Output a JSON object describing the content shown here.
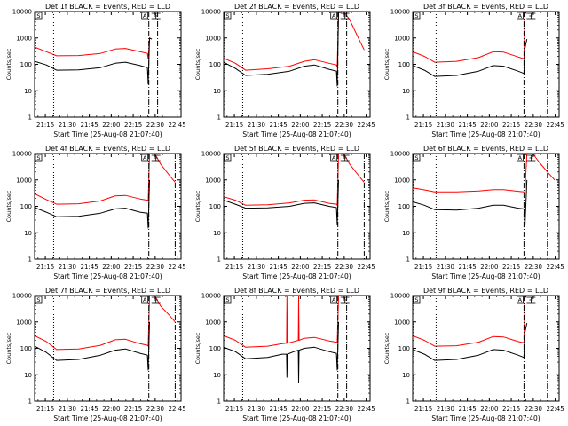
{
  "figure": {
    "xlabel": "Start Time (25-Aug-08 21:07:40)",
    "ylabel": "Counts/sec",
    "x_ticks": [
      "21:15",
      "21:30",
      "21:45",
      "22:00",
      "22:15",
      "22:30",
      "22:45"
    ],
    "y_ticks": [
      "1",
      "10",
      "100",
      "1000",
      "10000"
    ],
    "x_range_minutes": [
      0,
      100
    ],
    "y_range_log10": [
      0,
      4
    ],
    "y_scale": "log",
    "colors": {
      "events": "#000000",
      "lld": "#ff0000",
      "axes": "#000000"
    },
    "marker_labels": [
      "S",
      "A"
    ]
  },
  "chart_data": [
    {
      "type": "line",
      "title": "Det 1f BLACK = Events, RED = LLD",
      "black": [
        [
          0,
          130
        ],
        [
          8,
          95
        ],
        [
          15,
          60
        ],
        [
          30,
          62
        ],
        [
          45,
          75
        ],
        [
          55,
          110
        ],
        [
          62,
          120
        ],
        [
          72,
          90
        ],
        [
          77,
          75
        ],
        [
          77.6,
          18
        ],
        [
          78.5,
          1000
        ],
        [
          80,
          900
        ]
      ],
      "red": [
        [
          0,
          450
        ],
        [
          8,
          300
        ],
        [
          15,
          210
        ],
        [
          30,
          215
        ],
        [
          45,
          260
        ],
        [
          55,
          380
        ],
        [
          62,
          400
        ],
        [
          72,
          300
        ],
        [
          77,
          260
        ],
        [
          77.6,
          160
        ],
        [
          78.5,
          1000
        ],
        [
          80,
          900
        ]
      ],
      "vlines": [
        {
          "x": 13,
          "style": "dotted"
        },
        {
          "x": 78,
          "style": "dashdot"
        },
        {
          "x": 84,
          "style": "dashdot"
        }
      ]
    },
    {
      "type": "line",
      "title": "Det 2f BLACK = Events, RED = LLD",
      "black": [
        [
          0,
          120
        ],
        [
          8,
          70
        ],
        [
          15,
          38
        ],
        [
          30,
          42
        ],
        [
          45,
          55
        ],
        [
          55,
          85
        ],
        [
          62,
          95
        ],
        [
          72,
          65
        ],
        [
          77,
          55
        ],
        [
          77.6,
          15
        ],
        [
          78.5,
          9000
        ],
        [
          82,
          10000
        ]
      ],
      "red": [
        [
          0,
          170
        ],
        [
          8,
          110
        ],
        [
          15,
          60
        ],
        [
          30,
          68
        ],
        [
          45,
          85
        ],
        [
          55,
          130
        ],
        [
          62,
          150
        ],
        [
          72,
          110
        ],
        [
          77,
          95
        ],
        [
          77.6,
          80
        ],
        [
          78.5,
          9000
        ],
        [
          82,
          10000
        ],
        [
          86,
          5000
        ],
        [
          92,
          1000
        ],
        [
          96,
          350
        ]
      ],
      "vlines": [
        {
          "x": 13,
          "style": "dotted"
        },
        {
          "x": 78,
          "style": "dashdot"
        },
        {
          "x": 84,
          "style": "dashdot"
        }
      ]
    },
    {
      "type": "line",
      "title": "Det 3f BLACK = Events, RED = LLD",
      "black": [
        [
          0,
          90
        ],
        [
          8,
          60
        ],
        [
          15,
          35
        ],
        [
          30,
          38
        ],
        [
          45,
          55
        ],
        [
          55,
          90
        ],
        [
          62,
          85
        ],
        [
          72,
          55
        ],
        [
          76,
          45
        ],
        [
          76.6,
          400
        ],
        [
          78,
          900
        ]
      ],
      "red": [
        [
          0,
          300
        ],
        [
          8,
          200
        ],
        [
          15,
          120
        ],
        [
          30,
          130
        ],
        [
          45,
          180
        ],
        [
          55,
          300
        ],
        [
          62,
          290
        ],
        [
          72,
          190
        ],
        [
          76,
          160
        ],
        [
          76.6,
          8000
        ],
        [
          78,
          10000
        ]
      ],
      "vlines": [
        {
          "x": 16,
          "style": "dotted"
        },
        {
          "x": 76,
          "style": "dashdot"
        },
        {
          "x": 92,
          "style": "dashdot"
        }
      ]
    },
    {
      "type": "line",
      "title": "Det 4f BLACK = Events, RED = LLD",
      "black": [
        [
          0,
          90
        ],
        [
          8,
          60
        ],
        [
          15,
          40
        ],
        [
          30,
          42
        ],
        [
          45,
          55
        ],
        [
          55,
          80
        ],
        [
          62,
          85
        ],
        [
          72,
          60
        ],
        [
          77,
          55
        ],
        [
          77.6,
          15
        ],
        [
          78.5,
          1000
        ]
      ],
      "red": [
        [
          0,
          300
        ],
        [
          8,
          180
        ],
        [
          15,
          120
        ],
        [
          30,
          125
        ],
        [
          45,
          160
        ],
        [
          55,
          250
        ],
        [
          62,
          260
        ],
        [
          72,
          190
        ],
        [
          77,
          170
        ],
        [
          77.6,
          160
        ],
        [
          78.5,
          10000
        ],
        [
          82,
          10000
        ],
        [
          86,
          4000
        ],
        [
          92,
          1500
        ],
        [
          96,
          800
        ]
      ],
      "vlines": [
        {
          "x": 13,
          "style": "dotted"
        },
        {
          "x": 78,
          "style": "dashdot"
        },
        {
          "x": 96,
          "style": "dashdot"
        }
      ]
    },
    {
      "type": "line",
      "title": "Det 5f BLACK = Events, RED = LLD",
      "black": [
        [
          0,
          170
        ],
        [
          8,
          120
        ],
        [
          15,
          85
        ],
        [
          30,
          88
        ],
        [
          45,
          100
        ],
        [
          55,
          130
        ],
        [
          62,
          135
        ],
        [
          72,
          100
        ],
        [
          77,
          90
        ],
        [
          77.6,
          20
        ],
        [
          78.5,
          1000
        ]
      ],
      "red": [
        [
          0,
          230
        ],
        [
          8,
          170
        ],
        [
          15,
          110
        ],
        [
          30,
          115
        ],
        [
          45,
          135
        ],
        [
          55,
          170
        ],
        [
          62,
          175
        ],
        [
          72,
          130
        ],
        [
          77,
          120
        ],
        [
          77.6,
          110
        ],
        [
          78.5,
          10000
        ],
        [
          82,
          10000
        ],
        [
          86,
          4000
        ],
        [
          92,
          1500
        ],
        [
          96,
          800
        ]
      ],
      "vlines": [
        {
          "x": 13,
          "style": "dotted"
        },
        {
          "x": 78,
          "style": "dashdot"
        },
        {
          "x": 96,
          "style": "dashdot"
        }
      ]
    },
    {
      "type": "line",
      "title": "Det 6f BLACK = Events, RED = LLD",
      "black": [
        [
          0,
          150
        ],
        [
          8,
          110
        ],
        [
          15,
          75
        ],
        [
          30,
          72
        ],
        [
          45,
          85
        ],
        [
          55,
          110
        ],
        [
          62,
          110
        ],
        [
          72,
          85
        ],
        [
          76,
          80
        ],
        [
          76.6,
          15
        ],
        [
          78,
          1000
        ]
      ],
      "red": [
        [
          0,
          500
        ],
        [
          8,
          420
        ],
        [
          15,
          350
        ],
        [
          30,
          350
        ],
        [
          45,
          380
        ],
        [
          55,
          430
        ],
        [
          62,
          430
        ],
        [
          72,
          370
        ],
        [
          76,
          350
        ],
        [
          76.6,
          340
        ],
        [
          78,
          10000
        ],
        [
          82,
          10000
        ],
        [
          86,
          5000
        ],
        [
          92,
          2000
        ],
        [
          97,
          1000
        ]
      ],
      "vlines": [
        {
          "x": 16,
          "style": "dotted"
        },
        {
          "x": 76,
          "style": "dashdot"
        },
        {
          "x": 92,
          "style": "dashdot"
        }
      ]
    },
    {
      "type": "line",
      "title": "Det 7f BLACK = Events, RED = LLD",
      "black": [
        [
          0,
          120
        ],
        [
          8,
          70
        ],
        [
          15,
          35
        ],
        [
          30,
          38
        ],
        [
          45,
          55
        ],
        [
          55,
          85
        ],
        [
          62,
          95
        ],
        [
          72,
          65
        ],
        [
          77,
          55
        ],
        [
          77.6,
          15
        ],
        [
          78.5,
          1000
        ]
      ],
      "red": [
        [
          0,
          300
        ],
        [
          8,
          180
        ],
        [
          15,
          90
        ],
        [
          30,
          95
        ],
        [
          45,
          130
        ],
        [
          55,
          210
        ],
        [
          62,
          220
        ],
        [
          72,
          150
        ],
        [
          77,
          130
        ],
        [
          77.6,
          120
        ],
        [
          78.5,
          10000
        ],
        [
          82,
          10000
        ],
        [
          86,
          4000
        ],
        [
          92,
          1800
        ],
        [
          96,
          1000
        ]
      ],
      "vlines": [
        {
          "x": 13,
          "style": "dotted"
        },
        {
          "x": 78,
          "style": "dashdot"
        },
        {
          "x": 96,
          "style": "dashdot"
        }
      ]
    },
    {
      "type": "line",
      "title": "Det 8f BLACK = Events, RED = LLD",
      "black": [
        [
          0,
          110
        ],
        [
          8,
          75
        ],
        [
          15,
          40
        ],
        [
          30,
          45
        ],
        [
          40,
          60
        ],
        [
          43,
          60
        ],
        [
          43.2,
          8
        ],
        [
          43.5,
          60
        ],
        [
          48,
          75
        ],
        [
          51,
          85
        ],
        [
          51.2,
          5
        ],
        [
          51.5,
          85
        ],
        [
          55,
          100
        ],
        [
          62,
          110
        ],
        [
          72,
          75
        ],
        [
          77,
          65
        ],
        [
          77.6,
          15
        ],
        [
          78.5,
          1000
        ]
      ],
      "red": [
        [
          0,
          300
        ],
        [
          8,
          200
        ],
        [
          15,
          110
        ],
        [
          30,
          120
        ],
        [
          40,
          150
        ],
        [
          43,
          155
        ],
        [
          43.2,
          10000
        ],
        [
          43.5,
          155
        ],
        [
          48,
          180
        ],
        [
          51,
          200
        ],
        [
          51.2,
          10000
        ],
        [
          51.5,
          200
        ],
        [
          55,
          240
        ],
        [
          62,
          260
        ],
        [
          72,
          190
        ],
        [
          77,
          170
        ],
        [
          77.6,
          160
        ],
        [
          78.5,
          10000
        ]
      ],
      "vlines": [
        {
          "x": 13,
          "style": "dotted"
        },
        {
          "x": 78,
          "style": "dashdot"
        },
        {
          "x": 84,
          "style": "dashdot"
        }
      ]
    },
    {
      "type": "line",
      "title": "Det 9f BLACK = Events, RED = LLD",
      "black": [
        [
          0,
          90
        ],
        [
          8,
          60
        ],
        [
          15,
          35
        ],
        [
          30,
          38
        ],
        [
          45,
          55
        ],
        [
          55,
          90
        ],
        [
          62,
          85
        ],
        [
          72,
          55
        ],
        [
          76,
          45
        ],
        [
          76.6,
          400
        ],
        [
          78,
          900
        ]
      ],
      "red": [
        [
          0,
          300
        ],
        [
          8,
          200
        ],
        [
          15,
          120
        ],
        [
          30,
          125
        ],
        [
          45,
          170
        ],
        [
          55,
          280
        ],
        [
          62,
          270
        ],
        [
          72,
          180
        ],
        [
          76,
          160
        ],
        [
          76.6,
          8000
        ],
        [
          78,
          10000
        ]
      ],
      "vlines": [
        {
          "x": 16,
          "style": "dotted"
        },
        {
          "x": 76,
          "style": "dashdot"
        },
        {
          "x": 92,
          "style": "dashdot"
        }
      ]
    }
  ]
}
